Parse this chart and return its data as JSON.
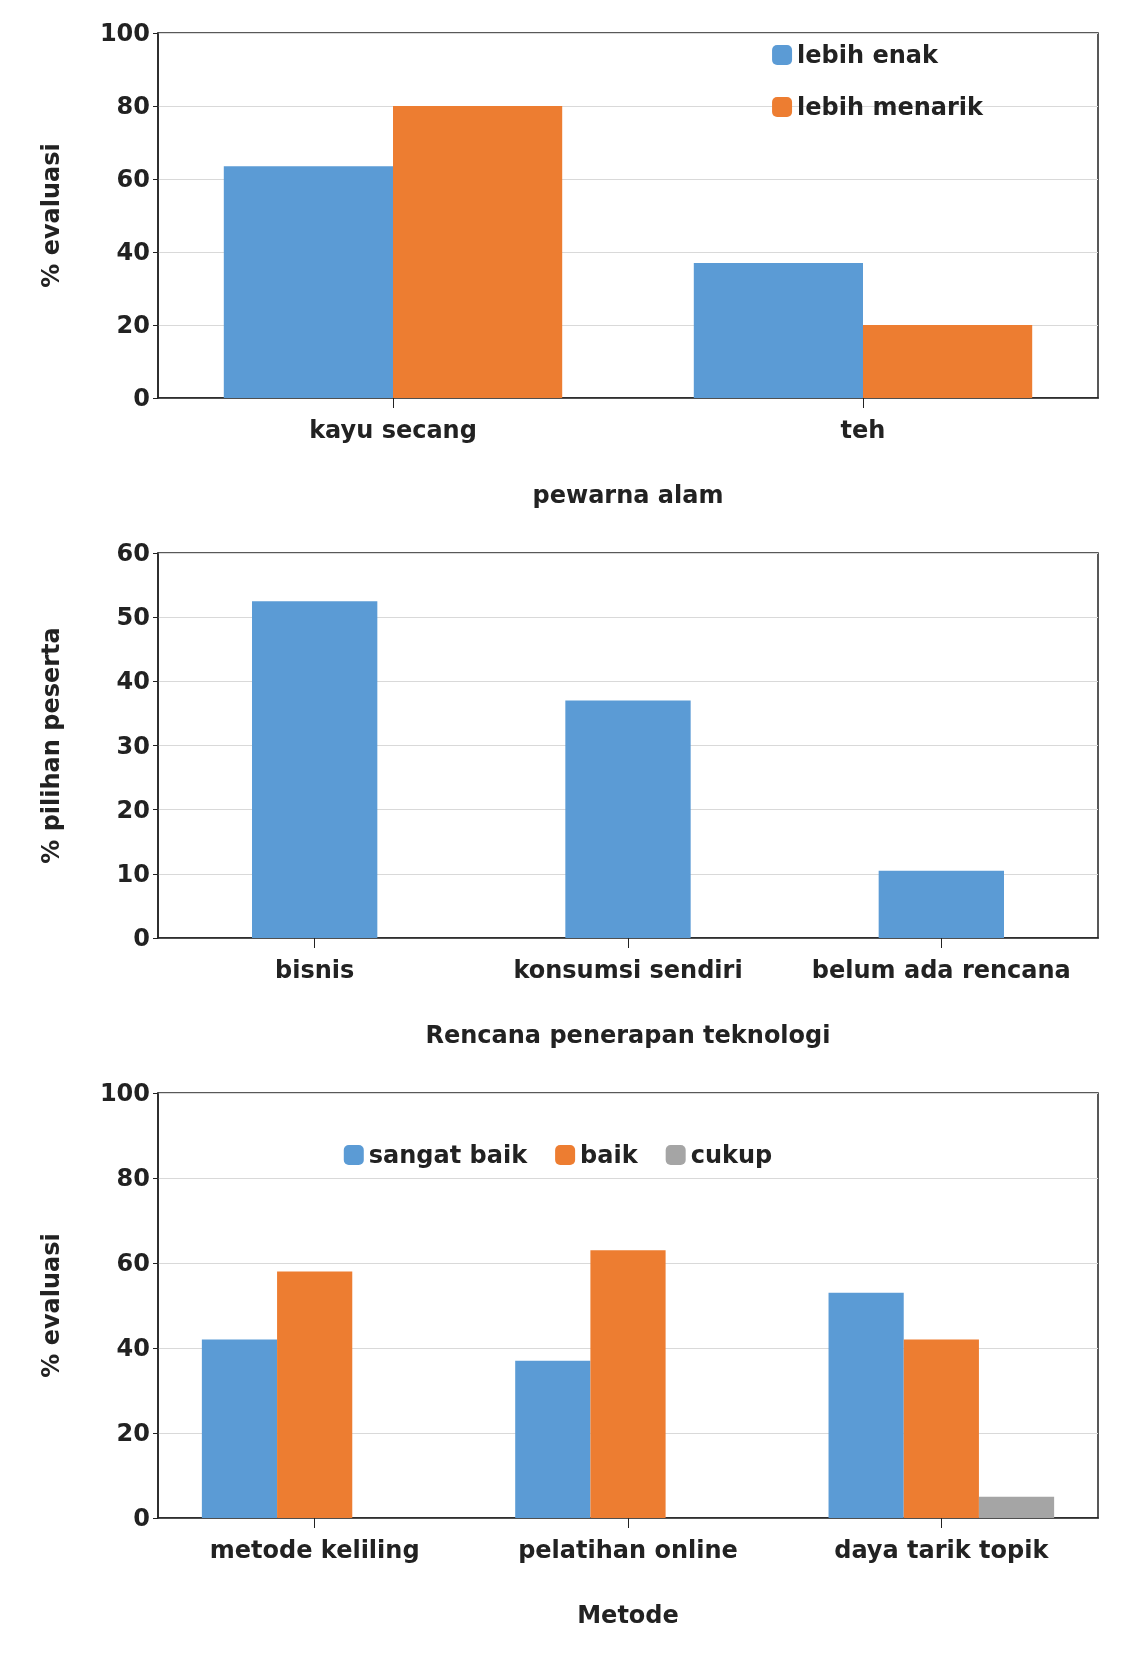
{
  "chart_data": [
    {
      "type": "bar",
      "xlabel": "pewarna alam",
      "ylabel": "% evaluasi",
      "categories": [
        "kayu secang",
        "teh"
      ],
      "series": [
        {
          "name": "lebih enak",
          "color": "#5b9bd5",
          "values": [
            63.5,
            37
          ]
        },
        {
          "name": "lebih menarik",
          "color": "#ed7d31",
          "values": [
            80,
            20
          ]
        }
      ],
      "ylim": [
        0,
        100
      ],
      "yticks": [
        0,
        20,
        40,
        60,
        80,
        100
      ],
      "grid": "y",
      "legend": "top right"
    },
    {
      "type": "bar",
      "xlabel": "Rencana penerapan teknologi",
      "ylabel": "% pilihan peserta",
      "categories": [
        "bisnis",
        "konsumsi sendiri",
        "belum ada rencana"
      ],
      "series": [
        {
          "color": "#5b9bd5",
          "values": [
            52.5,
            37,
            10.5
          ]
        }
      ],
      "ylim": [
        0,
        60
      ],
      "yticks": [
        0,
        10,
        20,
        30,
        40,
        50,
        60
      ],
      "grid": "y",
      "legend": false
    },
    {
      "type": "bar",
      "xlabel": "Metode",
      "ylabel": "% evaluasi",
      "categories": [
        "metode keliling",
        "pelatihan online",
        "daya tarik topik"
      ],
      "series": [
        {
          "name": "sangat baik",
          "color": "#5b9bd5",
          "values": [
            42,
            37,
            53
          ]
        },
        {
          "name": "baik",
          "color": "#ed7d31",
          "values": [
            58,
            63,
            42
          ]
        },
        {
          "name": "cukup",
          "color": "#a5a5a5",
          "values": [
            null,
            null,
            5
          ]
        }
      ],
      "ylim": [
        0,
        100
      ],
      "yticks": [
        0,
        20,
        40,
        60,
        80,
        100
      ],
      "grid": "y",
      "legend": "top"
    }
  ]
}
